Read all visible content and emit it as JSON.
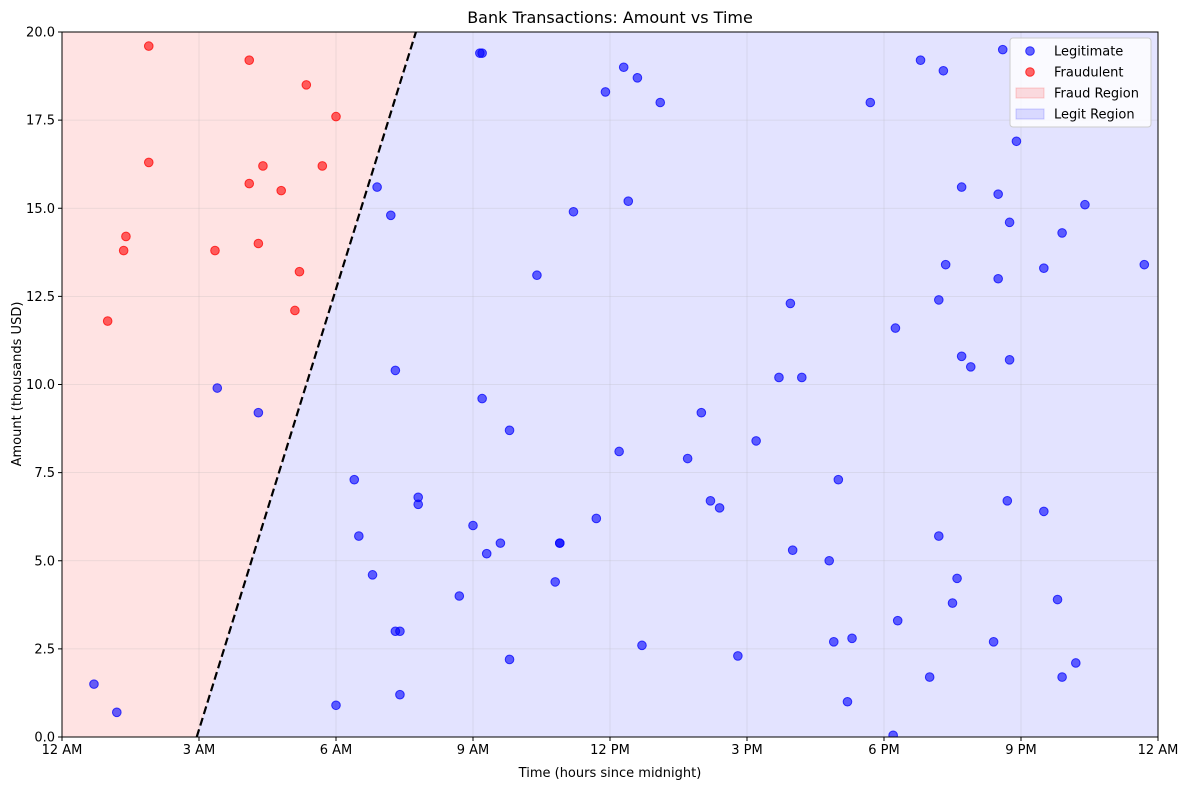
{
  "chart_data": {
    "type": "scatter",
    "title": "Bank Transactions: Amount vs Time",
    "xlabel": "Time (hours since midnight)",
    "ylabel": "Amount (thousands USD)",
    "xlim": [
      0,
      24
    ],
    "ylim": [
      0,
      20
    ],
    "x_ticks": [
      0,
      3,
      6,
      9,
      12,
      15,
      18,
      21,
      24
    ],
    "x_tick_labels": [
      "12 AM",
      "3 AM",
      "6 AM",
      "9 AM",
      "12 PM",
      "3 PM",
      "6 PM",
      "9 PM",
      "12 AM"
    ],
    "y_ticks": [
      0,
      2.5,
      5,
      7.5,
      10,
      12.5,
      15,
      17.5,
      20
    ],
    "y_tick_labels": [
      "0.0",
      "2.5",
      "5.0",
      "7.5",
      "10.0",
      "12.5",
      "15.0",
      "17.5",
      "20.0"
    ],
    "grid": true,
    "legend_position": "top-right",
    "decision_boundary": {
      "style": "dashed",
      "color": "#000000",
      "points": [
        [
          2.95,
          0
        ],
        [
          7.75,
          20
        ]
      ]
    },
    "regions": [
      {
        "name": "Fraud Region",
        "color": "#ff0000",
        "opacity": 0.11,
        "side": "left"
      },
      {
        "name": "Legit Region",
        "color": "#0000ff",
        "opacity": 0.11,
        "side": "right"
      }
    ],
    "series": [
      {
        "name": "Legitimate",
        "color": "#0000ff",
        "points": [
          [
            0.7,
            1.5
          ],
          [
            1.2,
            0.7
          ],
          [
            3.4,
            9.9
          ],
          [
            4.3,
            9.2
          ],
          [
            6.0,
            0.9
          ],
          [
            6.4,
            7.3
          ],
          [
            6.5,
            5.7
          ],
          [
            6.8,
            4.6
          ],
          [
            6.9,
            15.6
          ],
          [
            7.2,
            14.8
          ],
          [
            7.3,
            3.0
          ],
          [
            7.3,
            10.4
          ],
          [
            7.4,
            1.2
          ],
          [
            7.4,
            3.0
          ],
          [
            7.8,
            6.8
          ],
          [
            7.8,
            6.6
          ],
          [
            8.7,
            4.0
          ],
          [
            9.0,
            6.0
          ],
          [
            9.15,
            19.4
          ],
          [
            9.2,
            19.4
          ],
          [
            9.2,
            9.6
          ],
          [
            9.3,
            5.2
          ],
          [
            9.6,
            5.5
          ],
          [
            9.8,
            8.7
          ],
          [
            9.8,
            2.2
          ],
          [
            10.4,
            13.1
          ],
          [
            10.8,
            4.4
          ],
          [
            10.9,
            5.5
          ],
          [
            10.9,
            5.5
          ],
          [
            11.2,
            14.9
          ],
          [
            11.7,
            6.2
          ],
          [
            11.9,
            18.3
          ],
          [
            12.2,
            8.1
          ],
          [
            12.3,
            19.0
          ],
          [
            12.4,
            15.2
          ],
          [
            12.6,
            18.7
          ],
          [
            12.7,
            2.6
          ],
          [
            13.1,
            18.0
          ],
          [
            13.7,
            7.9
          ],
          [
            14.0,
            9.2
          ],
          [
            14.2,
            6.7
          ],
          [
            14.4,
            6.5
          ],
          [
            14.8,
            2.3
          ],
          [
            15.2,
            8.4
          ],
          [
            15.7,
            10.2
          ],
          [
            15.95,
            12.3
          ],
          [
            16.0,
            5.3
          ],
          [
            16.2,
            10.2
          ],
          [
            16.8,
            5.0
          ],
          [
            16.9,
            2.7
          ],
          [
            17.0,
            7.3
          ],
          [
            17.2,
            1.0
          ],
          [
            17.3,
            2.8
          ],
          [
            17.7,
            18.0
          ],
          [
            18.2,
            0.05
          ],
          [
            18.25,
            11.6
          ],
          [
            18.3,
            3.3
          ],
          [
            18.8,
            19.2
          ],
          [
            19.0,
            1.7
          ],
          [
            19.2,
            5.7
          ],
          [
            19.2,
            12.4
          ],
          [
            19.3,
            18.9
          ],
          [
            19.35,
            13.4
          ],
          [
            19.5,
            3.8
          ],
          [
            19.6,
            4.5
          ],
          [
            19.7,
            15.6
          ],
          [
            19.7,
            10.8
          ],
          [
            19.9,
            10.5
          ],
          [
            20.4,
            2.7
          ],
          [
            20.5,
            13.0
          ],
          [
            20.5,
            15.4
          ],
          [
            20.6,
            19.5
          ],
          [
            20.7,
            6.7
          ],
          [
            20.75,
            14.6
          ],
          [
            20.75,
            10.7
          ],
          [
            20.9,
            16.9
          ],
          [
            21.5,
            13.3
          ],
          [
            21.5,
            6.4
          ],
          [
            21.8,
            3.9
          ],
          [
            21.9,
            1.7
          ],
          [
            21.9,
            14.3
          ],
          [
            22.2,
            2.1
          ],
          [
            22.4,
            15.1
          ],
          [
            23.7,
            13.4
          ]
        ]
      },
      {
        "name": "Fraudulent",
        "color": "#ff0000",
        "points": [
          [
            1.0,
            11.8
          ],
          [
            1.35,
            13.8
          ],
          [
            1.4,
            14.2
          ],
          [
            1.9,
            19.6
          ],
          [
            1.9,
            16.3
          ],
          [
            3.35,
            13.8
          ],
          [
            4.1,
            19.2
          ],
          [
            4.1,
            15.7
          ],
          [
            4.3,
            14.0
          ],
          [
            4.4,
            16.2
          ],
          [
            4.8,
            15.5
          ],
          [
            5.1,
            12.1
          ],
          [
            5.2,
            13.2
          ],
          [
            5.35,
            18.5
          ],
          [
            5.7,
            16.2
          ],
          [
            6.0,
            17.6
          ]
        ]
      }
    ],
    "legend": [
      {
        "label": "Legitimate",
        "kind": "marker",
        "color": "#0000ff"
      },
      {
        "label": "Fraudulent",
        "kind": "marker",
        "color": "#ff0000"
      },
      {
        "label": "Fraud Region",
        "kind": "patch",
        "color": "#ff0000"
      },
      {
        "label": "Legit Region",
        "kind": "patch",
        "color": "#0000ff"
      }
    ]
  }
}
